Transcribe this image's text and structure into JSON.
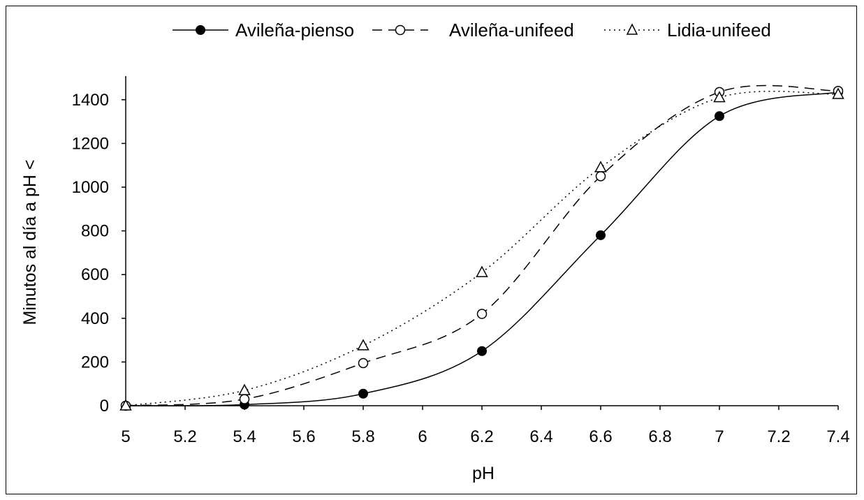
{
  "chart_data": {
    "type": "line",
    "title": "",
    "xlabel": "pH",
    "ylabel": "Minutos al día a pH <",
    "xlim": [
      5,
      7.4
    ],
    "ylim": [
      0,
      1400
    ],
    "x_ticks": [
      "5",
      "5.2",
      "5.4",
      "5.6",
      "5.8",
      "6",
      "6.2",
      "6.4",
      "6.6",
      "6.8",
      "7",
      "7.2",
      "7.4"
    ],
    "y_ticks": [
      "0",
      "200",
      "400",
      "600",
      "800",
      "1000",
      "1200",
      "1400"
    ],
    "legend_position": "top",
    "grid": false,
    "x": [
      5,
      5.4,
      5.8,
      6.2,
      6.6,
      7,
      7.4
    ],
    "series": [
      {
        "name": "Avileña-pienso",
        "marker": "filled-circle",
        "line": "solid",
        "color": "#000000",
        "values": [
          0,
          5,
          55,
          250,
          780,
          1325,
          1435
        ]
      },
      {
        "name": "Avileña-unifeed",
        "marker": "open-circle",
        "line": "dashed",
        "color": "#000000",
        "values": [
          0,
          30,
          195,
          420,
          1050,
          1435,
          1440
        ]
      },
      {
        "name": "Lidia-unifeed",
        "marker": "open-triangle",
        "line": "dotted",
        "color": "#000000",
        "values": [
          0,
          70,
          275,
          610,
          1090,
          1410,
          1425
        ]
      }
    ]
  }
}
